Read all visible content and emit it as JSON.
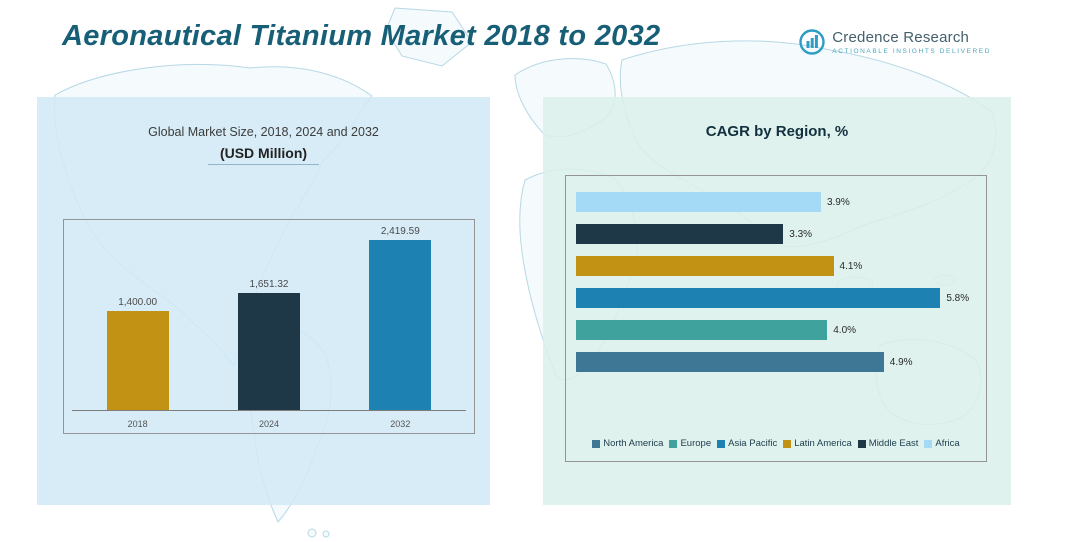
{
  "page_title": "Aeronautical Titanium Market 2018 to 2032",
  "logo": {
    "brand": "Credence Research",
    "tagline": "Actionable Insights Delivered",
    "icon": "bar-chart-circle-logo-icon",
    "accent_color": "#2e9cc4"
  },
  "colors": {
    "title_text": "#175f77",
    "left_panel_bg": "#d7eaf6",
    "right_panel_bg": "#ddefeb",
    "gold": "#c19213",
    "navy": "#1f3848",
    "blue": "#1d81b1",
    "teal": "#3fa29d",
    "light_blue": "#a4daf5",
    "steel_blue": "#3e7695"
  },
  "chart_data": [
    {
      "type": "bar",
      "title": "Global Market Size, 2018, 2024 and 2032",
      "subtitle": "(USD Million)",
      "categories": [
        "2018",
        "2024",
        "2032"
      ],
      "values": [
        1400.0,
        1651.32,
        2419.59
      ],
      "value_labels": [
        "1,400.00",
        "1,651.32",
        "2,419.59"
      ],
      "bar_colors": [
        "#c19213",
        "#1f3848",
        "#1d81b1"
      ],
      "xlabel": "",
      "ylabel": "",
      "ylim": [
        0,
        2600
      ],
      "grid": false,
      "legend": false
    },
    {
      "type": "bar",
      "orientation": "horizontal",
      "title": "CAGR by Region, %",
      "categories": [
        "Africa",
        "Middle East",
        "Latin America",
        "Asia Pacific",
        "Europe",
        "North America"
      ],
      "values": [
        3.9,
        3.3,
        4.1,
        5.8,
        4.0,
        4.9
      ],
      "value_labels": [
        "3.9%",
        "3.3%",
        "4.1%",
        "5.8%",
        "4.0%",
        "4.9%"
      ],
      "bar_colors": [
        "#a4daf5",
        "#1f3848",
        "#c19213",
        "#1d81b1",
        "#3fa29d",
        "#3e7695"
      ],
      "xlabel": "",
      "ylabel": "",
      "xlim": [
        0,
        6.4
      ],
      "grid": false,
      "legend_position": "bottom",
      "legend": [
        {
          "label": "North America",
          "color": "#3e7695"
        },
        {
          "label": "Europe",
          "color": "#3fa29d"
        },
        {
          "label": "Asia Pacific",
          "color": "#1d81b1"
        },
        {
          "label": "Latin America",
          "color": "#c19213"
        },
        {
          "label": "Middle East",
          "color": "#1f3848"
        },
        {
          "label": "Africa",
          "color": "#a4daf5"
        }
      ]
    }
  ]
}
